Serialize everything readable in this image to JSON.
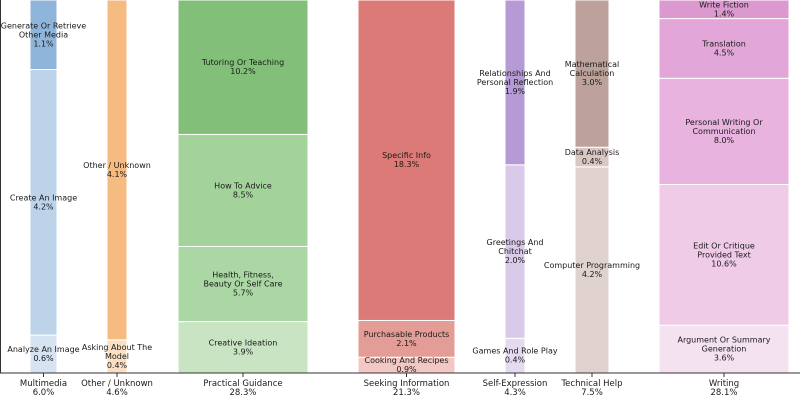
{
  "chart_data": {
    "type": "bar",
    "subtype": "stacked-mekko",
    "title": "",
    "xlabel": "",
    "ylabel": "",
    "ylim": [
      0,
      1
    ],
    "grid": false,
    "legend": "none",
    "categories": [
      {
        "name": "Multimedia",
        "total": "6.0%",
        "segments": [
          {
            "label": "Analyze An Image",
            "pct": "0.6%",
            "value": 0.6,
            "color": "#d6e3f1"
          },
          {
            "label": "Create An Image",
            "pct": "4.2%",
            "value": 4.2,
            "color": "#bcd3ea"
          },
          {
            "label": "Generate Or Retrieve Other Media",
            "pct": "1.1%",
            "value": 1.1,
            "color": "#90b5db"
          }
        ]
      },
      {
        "name": "Other / Unknown",
        "total": "4.6%",
        "segments": [
          {
            "label": "Asking About The Model",
            "pct": "0.4%",
            "value": 0.4,
            "color": "#fbe0c4"
          },
          {
            "label": "Other / Unknown",
            "pct": "4.1%",
            "value": 4.1,
            "color": "#f5bb80"
          }
        ]
      },
      {
        "name": "Practical Guidance",
        "total": "28.3%",
        "segments": [
          {
            "label": "Creative Ideation",
            "pct": "3.9%",
            "value": 3.9,
            "color": "#c8e4c3"
          },
          {
            "label": "Health, Fitness, Beauty Or Self Care",
            "pct": "5.7%",
            "value": 5.7,
            "color": "#abd7a4"
          },
          {
            "label": "How To Advice",
            "pct": "8.5%",
            "value": 8.5,
            "color": "#a3d39a"
          },
          {
            "label": "Tutoring Or Teaching",
            "pct": "10.2%",
            "value": 10.2,
            "color": "#82bf79"
          }
        ]
      },
      {
        "name": "Seeking Information",
        "total": "21.3%",
        "segments": [
          {
            "label": "Cooking And Recipes",
            "pct": "0.9%",
            "value": 0.9,
            "color": "#f2c7c4"
          },
          {
            "label": "Purchasable Products",
            "pct": "2.1%",
            "value": 2.1,
            "color": "#e49c96"
          },
          {
            "label": "Specific Info",
            "pct": "18.3%",
            "value": 18.3,
            "color": "#db7a76"
          }
        ]
      },
      {
        "name": "Self-Expression",
        "total": "4.3%",
        "segments": [
          {
            "label": "Games And Role Play",
            "pct": "0.4%",
            "value": 0.4,
            "color": "#e5daef"
          },
          {
            "label": "Greetings And Chitchat",
            "pct": "2.0%",
            "value": 2.0,
            "color": "#d9cae9"
          },
          {
            "label": "Relationships And Personal Reflection",
            "pct": "1.9%",
            "value": 1.9,
            "color": "#b69ad5"
          }
        ]
      },
      {
        "name": "Technical Help",
        "total": "7.5%",
        "segments": [
          {
            "label": "Computer Programming",
            "pct": "4.2%",
            "value": 4.2,
            "color": "#e0d3cf"
          },
          {
            "label": "Data Analysis",
            "pct": "0.4%",
            "value": 0.4,
            "color": "#d9c7c1"
          },
          {
            "label": "Mathematical Calculation",
            "pct": "3.0%",
            "value": 3.0,
            "color": "#bca29a"
          }
        ]
      },
      {
        "name": "Writing",
        "total": "28.1%",
        "segments": [
          {
            "label": "Argument Or Summary Generation",
            "pct": "3.6%",
            "value": 3.6,
            "color": "#f5e2f1"
          },
          {
            "label": "Edit Or Critique Provided Text",
            "pct": "10.6%",
            "value": 10.6,
            "color": "#efcbe8"
          },
          {
            "label": "Personal Writing Or Communication",
            "pct": "8.0%",
            "value": 8.0,
            "color": "#e8b3de"
          },
          {
            "label": "Translation",
            "pct": "4.5%",
            "value": 4.5,
            "color": "#e2a7d8"
          },
          {
            "label": "Write Fiction",
            "pct": "1.4%",
            "value": 1.4,
            "color": "#db99d0"
          }
        ]
      }
    ]
  }
}
